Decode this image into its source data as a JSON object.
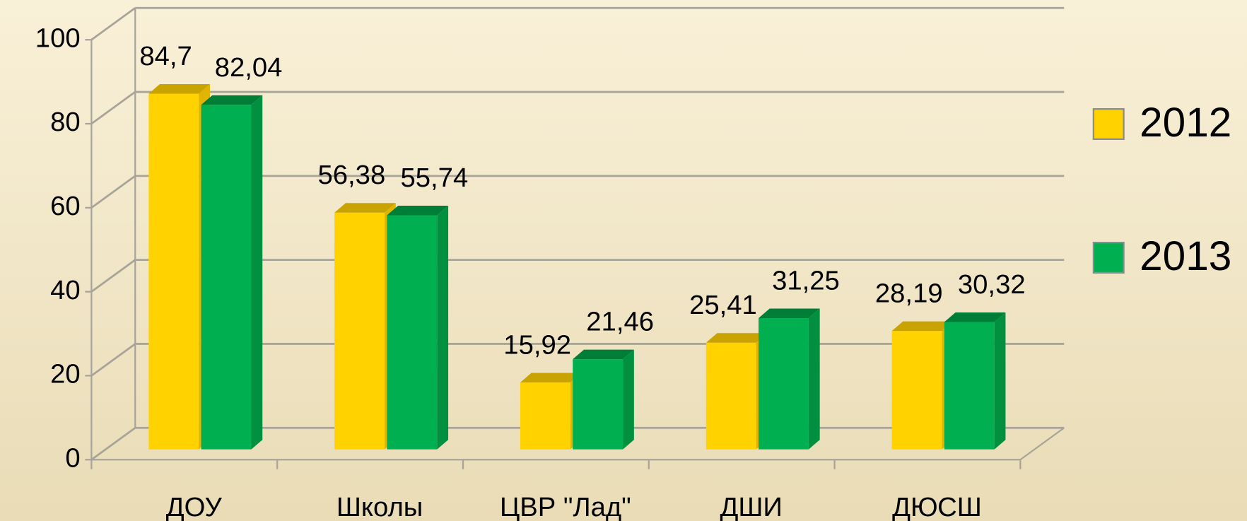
{
  "chart_data": {
    "type": "bar3d",
    "categories": [
      "ДОУ",
      "Школы",
      "ЦВР \"Лад\"",
      "ДШИ",
      "ДЮСШ"
    ],
    "series": [
      {
        "name": "2012",
        "color": "#ffd200",
        "values": [
          84.7,
          56.38,
          15.92,
          25.41,
          28.19
        ],
        "value_labels": [
          "84,7",
          "56,38",
          "15,92",
          "25,41",
          "28,19"
        ]
      },
      {
        "name": "2013",
        "color": "#00b050",
        "values": [
          82.04,
          55.74,
          21.46,
          31.25,
          30.32
        ],
        "value_labels": [
          "82,04",
          "55,74",
          "21,46",
          "31,25",
          "30,32"
        ]
      }
    ],
    "ylim": [
      0,
      100
    ],
    "yticks": [
      0,
      20,
      40,
      60,
      80,
      100
    ],
    "grid": true,
    "legend": "right"
  }
}
